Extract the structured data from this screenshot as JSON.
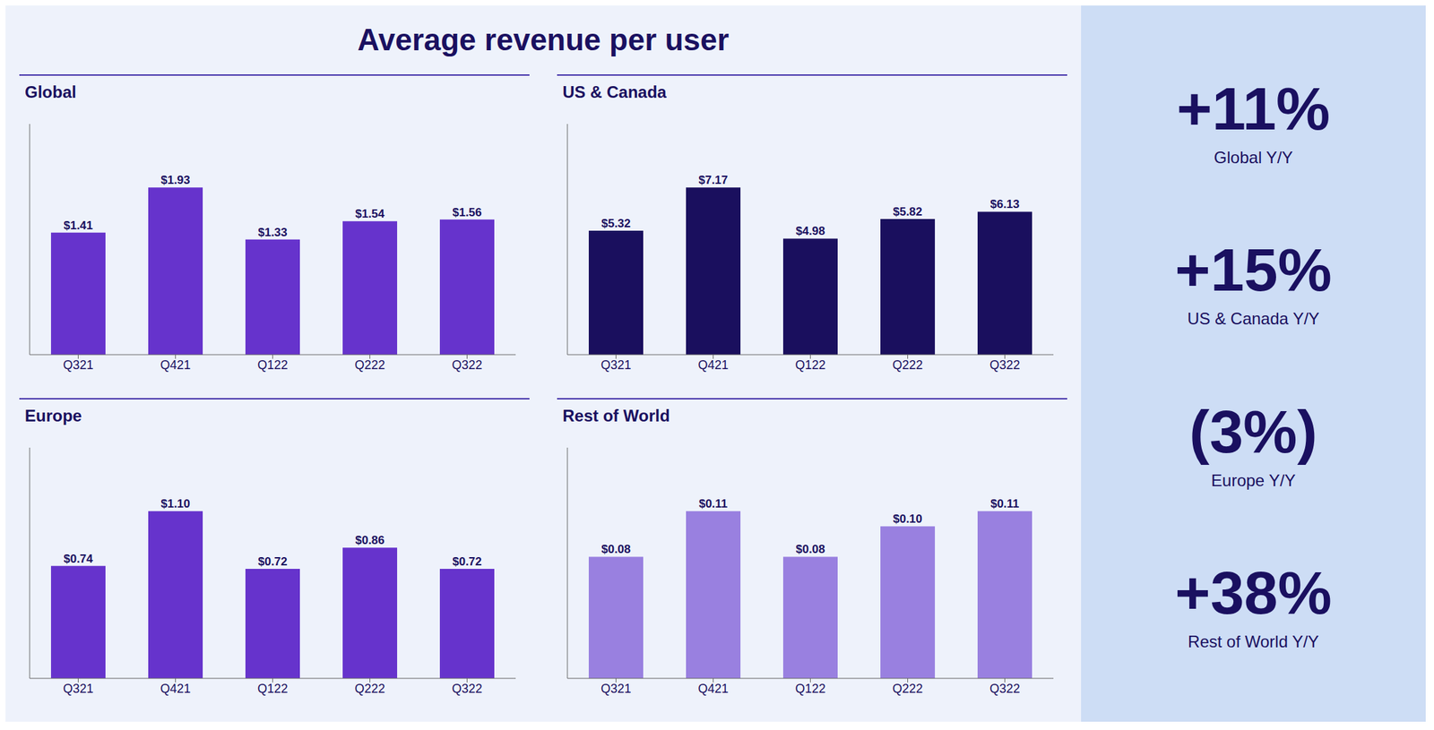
{
  "title": "Average revenue per user",
  "annotations": [
    "+11%",
    "Global Y/Y",
    "+15%",
    "US & Canada Y/Y",
    "(3%)",
    "Europe Y/Y",
    "+38%",
    "Rest of World Y/Y"
  ],
  "chart_data": [
    {
      "type": "bar",
      "title": "Global",
      "categories": [
        "Q321",
        "Q421",
        "Q122",
        "Q222",
        "Q322"
      ],
      "values": [
        1.41,
        1.93,
        1.33,
        1.54,
        1.56
      ],
      "value_labels": [
        "$1.41",
        "$1.93",
        "$1.33",
        "$1.54",
        "$1.56"
      ],
      "color": "#6633cc",
      "data_labels": true,
      "ylim": [
        0,
        2.6634
      ],
      "grid": false,
      "tick_labels": "x"
    },
    {
      "type": "bar",
      "title": "US & Canada",
      "categories": [
        "Q321",
        "Q421",
        "Q122",
        "Q222",
        "Q322"
      ],
      "values": [
        5.32,
        7.17,
        4.98,
        5.82,
        6.13
      ],
      "value_labels": [
        "$5.32",
        "$7.17",
        "$4.98",
        "$5.82",
        "$6.13"
      ],
      "color": "#1a0f5e",
      "data_labels": true,
      "ylim": [
        0,
        9.8946
      ],
      "grid": false,
      "tick_labels": "x"
    },
    {
      "type": "bar",
      "title": "Europe",
      "categories": [
        "Q321",
        "Q421",
        "Q122",
        "Q222",
        "Q322"
      ],
      "values": [
        0.74,
        1.1,
        0.72,
        0.86,
        0.72
      ],
      "value_labels": [
        "$0.74",
        "$1.10",
        "$0.72",
        "$0.86",
        "$0.72"
      ],
      "color": "#6633cc",
      "data_labels": true,
      "ylim": [
        0,
        1.518
      ],
      "grid": false,
      "tick_labels": "x"
    },
    {
      "type": "bar",
      "title": "Rest of World",
      "categories": [
        "Q321",
        "Q421",
        "Q122",
        "Q222",
        "Q322"
      ],
      "values": [
        0.08,
        0.11,
        0.08,
        0.1,
        0.11
      ],
      "value_labels": [
        "$0.08",
        "$0.11",
        "$0.08",
        "$0.10",
        "$0.11"
      ],
      "color": "#9980e0",
      "data_labels": true,
      "ylim": [
        0,
        0.1518
      ],
      "grid": false,
      "tick_labels": "x"
    }
  ]
}
